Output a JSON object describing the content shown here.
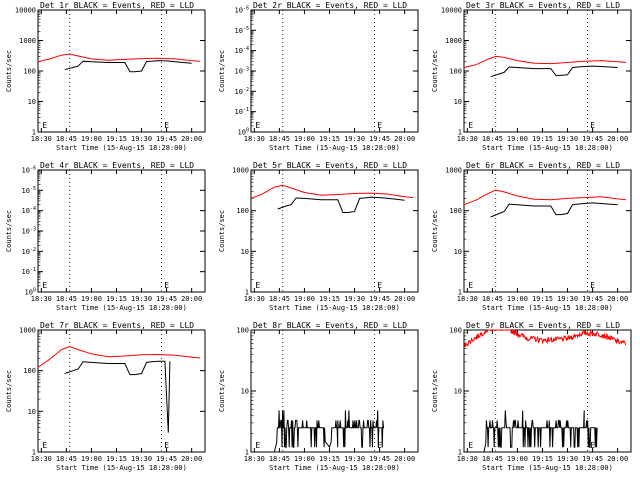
{
  "colors": {
    "events": "#000000",
    "lld": "#ff0000",
    "axes": "#000000",
    "background": "#ffffff"
  },
  "chart_data": [
    {
      "type": "line",
      "title": "Det 1r BLACK = Events, RED = LLD",
      "ylabel": "Counts/sec",
      "xlabel": "Start Time (15-Aug-15 18:28:00)",
      "x_ticks": [
        "18:30",
        "18:45",
        "19:00",
        "19:15",
        "19:30",
        "19:45",
        "20:00"
      ],
      "y_scale": "log",
      "y_ticks": [
        "1",
        "10",
        "100",
        "1000",
        "10000"
      ],
      "ylim": [
        1,
        10000
      ],
      "vlines": [
        "18:47",
        "19:42"
      ],
      "markers": [
        {
          "label": "E",
          "time": "18:30"
        },
        {
          "label": "E",
          "time": "19:43"
        }
      ],
      "series": [
        {
          "role": "lld",
          "color": "#ff0000",
          "x": [
            "18:28",
            "18:35",
            "18:42",
            "18:47",
            "18:52",
            "19:00",
            "19:10",
            "19:20",
            "19:30",
            "19:40",
            "19:50",
            "20:00",
            "20:05"
          ],
          "values": [
            200,
            250,
            330,
            360,
            310,
            250,
            225,
            240,
            255,
            260,
            250,
            220,
            210
          ]
        },
        {
          "role": "events",
          "color": "#000000",
          "x": [
            "18:44",
            "18:49",
            "18:52",
            "18:55",
            "19:00",
            "19:10",
            "19:20",
            "19:23",
            "19:26",
            "19:30",
            "19:33",
            "19:36",
            "19:40",
            "19:45",
            "19:50",
            "19:55",
            "20:00"
          ],
          "values": [
            110,
            130,
            145,
            210,
            200,
            190,
            190,
            95,
            95,
            100,
            205,
            210,
            220,
            215,
            200,
            190,
            180
          ]
        }
      ]
    },
    {
      "type": "line",
      "title": "Det 2r BLACK = Events, RED = LLD",
      "ylabel": "Counts/sec",
      "xlabel": "Start Time (15-Aug-15 18:28:00)",
      "x_ticks": [
        "18:30",
        "18:45",
        "19:00",
        "19:15",
        "19:30",
        "19:45",
        "20:00"
      ],
      "y_scale": "log",
      "y_ticks": [
        "10^0",
        "10^-1",
        "10^-2",
        "10^-3",
        "10^-4",
        "10^-5",
        "10^-6"
      ],
      "ylim": [
        1,
        1000000
      ],
      "vlines": [
        "18:47",
        "19:42"
      ],
      "markers": [
        {
          "label": "E",
          "time": "18:30"
        },
        {
          "label": "E",
          "time": "19:43"
        }
      ],
      "series": []
    },
    {
      "type": "line",
      "title": "Det 3r BLACK = Events, RED = LLD",
      "ylabel": "Counts/sec",
      "xlabel": "Start Time (15-Aug-15 18:28:00)",
      "x_ticks": [
        "18:30",
        "18:45",
        "19:00",
        "19:15",
        "19:30",
        "19:45",
        "20:00"
      ],
      "y_scale": "log",
      "y_ticks": [
        "1",
        "10",
        "100",
        "1000",
        "10000"
      ],
      "ylim": [
        1,
        10000
      ],
      "vlines": [
        "18:47",
        "19:42"
      ],
      "markers": [
        {
          "label": "E",
          "time": "18:30"
        },
        {
          "label": "E",
          "time": "19:43"
        }
      ],
      "series": [
        {
          "role": "lld",
          "color": "#ff0000",
          "x": [
            "18:28",
            "18:35",
            "18:42",
            "18:47",
            "18:52",
            "19:00",
            "19:10",
            "19:20",
            "19:30",
            "19:40",
            "19:50",
            "20:00",
            "20:05"
          ],
          "values": [
            130,
            160,
            240,
            300,
            280,
            220,
            180,
            175,
            190,
            210,
            220,
            200,
            190
          ]
        },
        {
          "role": "events",
          "color": "#000000",
          "x": [
            "18:44",
            "18:49",
            "18:52",
            "18:55",
            "19:00",
            "19:10",
            "19:20",
            "19:23",
            "19:26",
            "19:30",
            "19:33",
            "19:36",
            "19:40",
            "19:45",
            "19:50",
            "19:55",
            "20:00"
          ],
          "values": [
            65,
            80,
            90,
            135,
            130,
            120,
            120,
            72,
            72,
            75,
            130,
            135,
            140,
            145,
            140,
            135,
            130
          ]
        }
      ]
    },
    {
      "type": "line",
      "title": "Det 4r BLACK = Events, RED = LLD",
      "ylabel": "Counts/sec",
      "xlabel": "Start Time (15-Aug-15 18:28:00)",
      "x_ticks": [
        "18:30",
        "18:45",
        "19:00",
        "19:15",
        "19:30",
        "19:45",
        "20:00"
      ],
      "y_scale": "log",
      "y_ticks": [
        "10^0",
        "10^-1",
        "10^-2",
        "10^-3",
        "10^-4",
        "10^-5",
        "10^-6"
      ],
      "ylim": [
        1,
        1000000
      ],
      "vlines": [
        "18:47",
        "19:42"
      ],
      "markers": [
        {
          "label": "E",
          "time": "18:30"
        },
        {
          "label": "E",
          "time": "19:43"
        }
      ],
      "series": []
    },
    {
      "type": "line",
      "title": "Det 5r BLACK = Events, RED = LLD",
      "ylabel": "Counts/sec",
      "xlabel": "Start Time (15-Aug-15 18:28:00)",
      "x_ticks": [
        "18:30",
        "18:45",
        "19:00",
        "19:15",
        "19:30",
        "19:45",
        "20:00"
      ],
      "y_scale": "log",
      "y_ticks": [
        "1",
        "10",
        "100",
        "1000"
      ],
      "ylim": [
        1,
        1000
      ],
      "vlines": [
        "18:47",
        "19:42"
      ],
      "markers": [
        {
          "label": "E",
          "time": "18:30"
        },
        {
          "label": "E",
          "time": "19:43"
        }
      ],
      "series": [
        {
          "role": "lld",
          "color": "#ff0000",
          "x": [
            "18:28",
            "18:35",
            "18:42",
            "18:47",
            "18:52",
            "19:00",
            "19:10",
            "19:20",
            "19:30",
            "19:40",
            "19:50",
            "20:00",
            "20:05"
          ],
          "values": [
            200,
            260,
            380,
            420,
            360,
            280,
            240,
            250,
            265,
            270,
            255,
            220,
            210
          ]
        },
        {
          "role": "events",
          "color": "#000000",
          "x": [
            "18:44",
            "18:49",
            "18:52",
            "18:55",
            "19:00",
            "19:10",
            "19:20",
            "19:23",
            "19:26",
            "19:30",
            "19:33",
            "19:36",
            "19:40",
            "19:45",
            "19:50",
            "19:55",
            "20:00"
          ],
          "values": [
            110,
            130,
            140,
            205,
            200,
            185,
            185,
            90,
            90,
            95,
            200,
            205,
            215,
            210,
            200,
            190,
            180
          ]
        }
      ]
    },
    {
      "type": "line",
      "title": "Det 6r BLACK = Events, RED = LLD",
      "ylabel": "Counts/sec",
      "xlabel": "Start Time (15-Aug-15 18:28:00)",
      "x_ticks": [
        "18:30",
        "18:45",
        "19:00",
        "19:15",
        "19:30",
        "19:45",
        "20:00"
      ],
      "y_scale": "log",
      "y_ticks": [
        "1",
        "10",
        "100",
        "1000"
      ],
      "ylim": [
        1,
        1000
      ],
      "vlines": [
        "18:47",
        "19:42"
      ],
      "markers": [
        {
          "label": "E",
          "time": "18:30"
        },
        {
          "label": "E",
          "time": "19:43"
        }
      ],
      "series": [
        {
          "role": "lld",
          "color": "#ff0000",
          "x": [
            "18:28",
            "18:35",
            "18:42",
            "18:47",
            "18:52",
            "19:00",
            "19:10",
            "19:20",
            "19:30",
            "19:40",
            "19:50",
            "20:00",
            "20:05"
          ],
          "values": [
            140,
            180,
            260,
            320,
            290,
            230,
            190,
            185,
            200,
            210,
            220,
            195,
            185
          ]
        },
        {
          "role": "events",
          "color": "#000000",
          "x": [
            "18:44",
            "18:49",
            "18:52",
            "18:55",
            "19:00",
            "19:10",
            "19:20",
            "19:23",
            "19:26",
            "19:30",
            "19:33",
            "19:36",
            "19:40",
            "19:45",
            "19:50",
            "19:55",
            "20:00"
          ],
          "values": [
            70,
            85,
            95,
            145,
            140,
            130,
            130,
            80,
            80,
            85,
            140,
            145,
            150,
            155,
            150,
            145,
            140
          ]
        }
      ]
    },
    {
      "type": "line",
      "title": "Det 7r BLACK = Events, RED = LLD",
      "ylabel": "Counts/sec",
      "xlabel": "Start Time (15-Aug-15 18:28:00)",
      "x_ticks": [
        "18:30",
        "18:45",
        "19:00",
        "19:15",
        "19:30",
        "19:45",
        "20:00"
      ],
      "y_scale": "log",
      "y_ticks": [
        "1",
        "10",
        "100",
        "1000"
      ],
      "ylim": [
        1,
        1000
      ],
      "vlines": [
        "18:47",
        "19:42"
      ],
      "markers": [
        {
          "label": "E",
          "time": "18:30"
        },
        {
          "label": "E",
          "time": "19:43"
        }
      ],
      "series": [
        {
          "role": "lld",
          "color": "#ff0000",
          "x": [
            "18:28",
            "18:35",
            "18:42",
            "18:47",
            "18:52",
            "19:00",
            "19:10",
            "19:20",
            "19:30",
            "19:40",
            "19:50",
            "20:00",
            "20:05"
          ],
          "values": [
            120,
            190,
            330,
            390,
            330,
            260,
            220,
            230,
            245,
            250,
            240,
            215,
            205
          ]
        },
        {
          "role": "events",
          "color": "#000000",
          "x": [
            "18:44",
            "18:49",
            "18:52",
            "18:55",
            "19:00",
            "19:10",
            "19:20",
            "19:23",
            "19:26",
            "19:30",
            "19:33",
            "19:36",
            "19:40",
            "19:44",
            "19:46",
            "19:47"
          ],
          "values": [
            85,
            100,
            110,
            165,
            160,
            150,
            150,
            80,
            80,
            85,
            160,
            165,
            170,
            170,
            3,
            170
          ]
        }
      ]
    },
    {
      "type": "line",
      "title": "Det 8r BLACK = Events, RED = LLD",
      "ylabel": "Counts/sec",
      "xlabel": "Start Time (15-Aug-15 18:28:00)",
      "x_ticks": [
        "18:30",
        "18:45",
        "19:00",
        "19:15",
        "19:30",
        "19:45",
        "20:00"
      ],
      "y_scale": "log",
      "y_ticks": [
        "1",
        "10",
        "100"
      ],
      "ylim": [
        1,
        100
      ],
      "vlines": [
        "18:47",
        "19:42"
      ],
      "markers": [
        {
          "label": "E",
          "time": "18:30"
        },
        {
          "label": "E",
          "time": "19:43"
        }
      ],
      "series": [
        {
          "role": "events",
          "color": "#000000",
          "noisy": true,
          "x": [
            "18:28",
            "18:42",
            "18:47",
            "19:03",
            "19:15",
            "19:20",
            "19:40",
            "19:48"
          ],
          "values": [
            1,
            1,
            2.5,
            2.5,
            1.2,
            2.5,
            2.5,
            2.5
          ]
        }
      ]
    },
    {
      "type": "line",
      "title": "Det 9r BLACK = Events, RED = LLD",
      "ylabel": "Counts/sec",
      "xlabel": "Start Time (15-Aug-15 18:28:00)",
      "x_ticks": [
        "18:30",
        "18:45",
        "19:00",
        "19:15",
        "19:30",
        "19:45",
        "20:00"
      ],
      "y_scale": "log",
      "y_ticks": [
        "1",
        "10",
        "100"
      ],
      "ylim": [
        1,
        100
      ],
      "vlines": [
        "18:47",
        "19:42"
      ],
      "markers": [
        {
          "label": "E",
          "time": "18:30"
        },
        {
          "label": "E",
          "time": "19:43"
        }
      ],
      "series": [
        {
          "role": "lld",
          "color": "#ff0000",
          "noisy": true,
          "x": [
            "18:28",
            "18:35",
            "18:42",
            "18:47",
            "18:55",
            "19:05",
            "19:15",
            "19:30",
            "19:40",
            "19:50",
            "20:00",
            "20:05"
          ],
          "values": [
            55,
            75,
            100,
            110,
            100,
            75,
            68,
            72,
            90,
            85,
            65,
            60
          ]
        },
        {
          "role": "events",
          "color": "#000000",
          "noisy": true,
          "x": [
            "18:28",
            "18:40",
            "18:44",
            "19:00",
            "19:10",
            "19:20",
            "19:40",
            "19:48"
          ],
          "values": [
            1,
            1,
            2.5,
            2.5,
            2,
            2.3,
            2.5,
            2.5
          ]
        }
      ]
    }
  ]
}
